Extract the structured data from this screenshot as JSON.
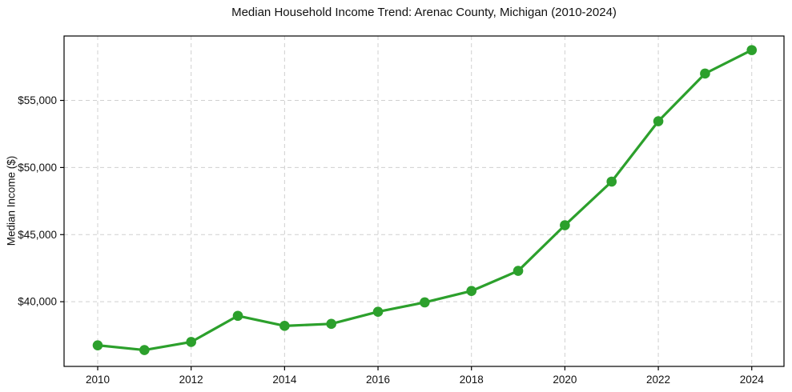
{
  "chart_data": {
    "type": "line",
    "title": "Median Household Income Trend: Arenac County, Michigan (2010-2024)",
    "xlabel": "",
    "ylabel": "Median Income ($)",
    "series_name": "Median Household Income",
    "x": [
      2010,
      2011,
      2012,
      2013,
      2014,
      2015,
      2016,
      2017,
      2018,
      2019,
      2020,
      2021,
      2022,
      2023,
      2024
    ],
    "values": [
      36750,
      36400,
      37000,
      38950,
      38200,
      38350,
      39250,
      39950,
      40800,
      42300,
      45700,
      48950,
      53450,
      57000,
      58750
    ],
    "xticks": [
      2010,
      2012,
      2014,
      2016,
      2018,
      2020,
      2022,
      2024
    ],
    "yticks": [
      40000,
      45000,
      50000,
      55000
    ],
    "ytick_labels": [
      "$40,000",
      "$45,000",
      "$50,000",
      "$55,000"
    ],
    "xlim": [
      2009.28,
      2024.69
    ],
    "ylim": [
      35180,
      59800
    ],
    "grid": true,
    "grid_style": "dashed",
    "legend": false,
    "marker": "circle",
    "line_color": "#2ca02c",
    "grid_color": "#d0d0d0",
    "spine_color": "#000000",
    "text_color": "#111111",
    "background": "#ffffff"
  }
}
